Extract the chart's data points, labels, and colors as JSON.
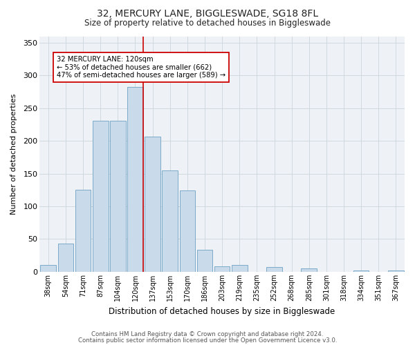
{
  "title_line1": "32, MERCURY LANE, BIGGLESWADE, SG18 8FL",
  "title_line2": "Size of property relative to detached houses in Biggleswade",
  "xlabel": "Distribution of detached houses by size in Biggleswade",
  "ylabel": "Number of detached properties",
  "categories": [
    "38sqm",
    "54sqm",
    "71sqm",
    "87sqm",
    "104sqm",
    "120sqm",
    "137sqm",
    "153sqm",
    "170sqm",
    "186sqm",
    "203sqm",
    "219sqm",
    "235sqm",
    "252sqm",
    "268sqm",
    "285sqm",
    "301sqm",
    "318sqm",
    "334sqm",
    "351sqm",
    "367sqm"
  ],
  "values": [
    10,
    43,
    125,
    231,
    231,
    283,
    207,
    155,
    124,
    34,
    8,
    10,
    0,
    7,
    0,
    5,
    0,
    0,
    2,
    0,
    2
  ],
  "bar_color": "#c9daea",
  "bar_edge_color": "#7aaac8",
  "highlight_index": 5,
  "highlight_color": "#cc0000",
  "annotation_text": "32 MERCURY LANE: 120sqm\n← 53% of detached houses are smaller (662)\n47% of semi-detached houses are larger (589) →",
  "annotation_box_color": "white",
  "annotation_box_edge": "#cc0000",
  "ylim": [
    0,
    360
  ],
  "yticks": [
    0,
    50,
    100,
    150,
    200,
    250,
    300,
    350
  ],
  "footnote1": "Contains HM Land Registry data © Crown copyright and database right 2024.",
  "footnote2": "Contains public sector information licensed under the Open Government Licence v3.0.",
  "bg_color": "#ffffff",
  "plot_bg_color": "#eef2f7",
  "grid_color": "#d0d8e0"
}
